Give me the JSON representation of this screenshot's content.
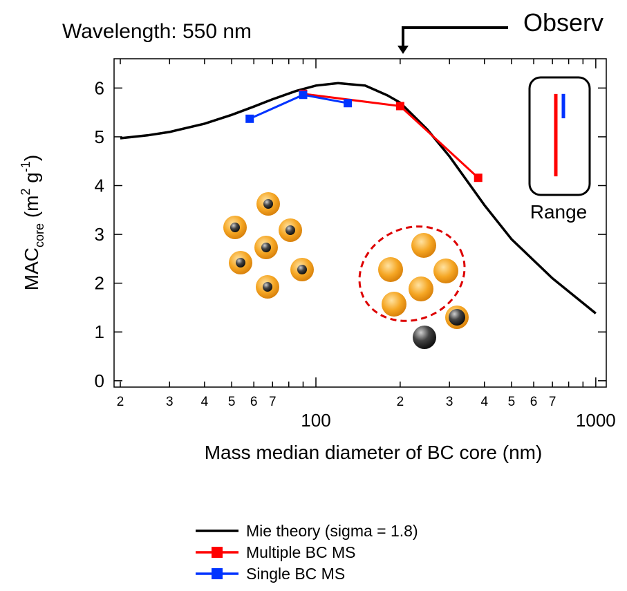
{
  "chart_data": {
    "type": "line",
    "title": "Wavelength: 550 nm",
    "annotation": "Observ",
    "range_label": "Range",
    "xlabel": "Mass median diameter of BC core (nm)",
    "ylabel_parts": [
      "MAC",
      "core",
      " (m",
      "2",
      " g",
      "-1",
      ")"
    ],
    "xscale": "log",
    "xlim": [
      19,
      1090
    ],
    "ylim": [
      -0.13,
      6.6
    ],
    "xticks": [
      {
        "value": 20,
        "label": "2"
      },
      {
        "value": 30,
        "label": "3"
      },
      {
        "value": 40,
        "label": "4"
      },
      {
        "value": 50,
        "label": "5"
      },
      {
        "value": 60,
        "label": "6"
      },
      {
        "value": 70,
        "label": "7"
      },
      100,
      {
        "value": 200,
        "label": "2"
      },
      {
        "value": 300,
        "label": "3"
      },
      {
        "value": 400,
        "label": "4"
      },
      {
        "value": 500,
        "label": "5"
      },
      {
        "value": 600,
        "label": "6"
      },
      {
        "value": 700,
        "label": "7"
      },
      1000
    ],
    "xminor_ticks": [
      80,
      90,
      800,
      900
    ],
    "yticks": [
      0,
      1,
      2,
      3,
      4,
      5,
      6
    ],
    "series": [
      {
        "name": "Mie theory (sigma = 1.8)",
        "color": "#000000",
        "marker": false,
        "x": [
          20,
          25,
          30,
          40,
          50,
          60,
          70,
          85,
          100,
          120,
          150,
          180,
          200,
          250,
          300,
          400,
          500,
          700,
          1000
        ],
        "values": [
          4.97,
          5.03,
          5.1,
          5.27,
          5.45,
          5.62,
          5.77,
          5.94,
          6.05,
          6.1,
          6.05,
          5.85,
          5.7,
          5.15,
          4.6,
          3.6,
          2.9,
          2.1,
          1.38
        ]
      },
      {
        "name": "Multiple BC MS",
        "color": "#ff0000",
        "marker": true,
        "x": [
          90,
          200,
          380
        ],
        "values": [
          5.88,
          5.63,
          4.16
        ],
        "range": [
          4.19,
          5.88
        ]
      },
      {
        "name": "Single BC MS",
        "color": "#0033ff",
        "marker": true,
        "x": [
          58,
          90,
          130
        ],
        "values": [
          5.37,
          5.86,
          5.69
        ],
        "range": [
          5.38,
          5.88
        ]
      }
    ]
  }
}
